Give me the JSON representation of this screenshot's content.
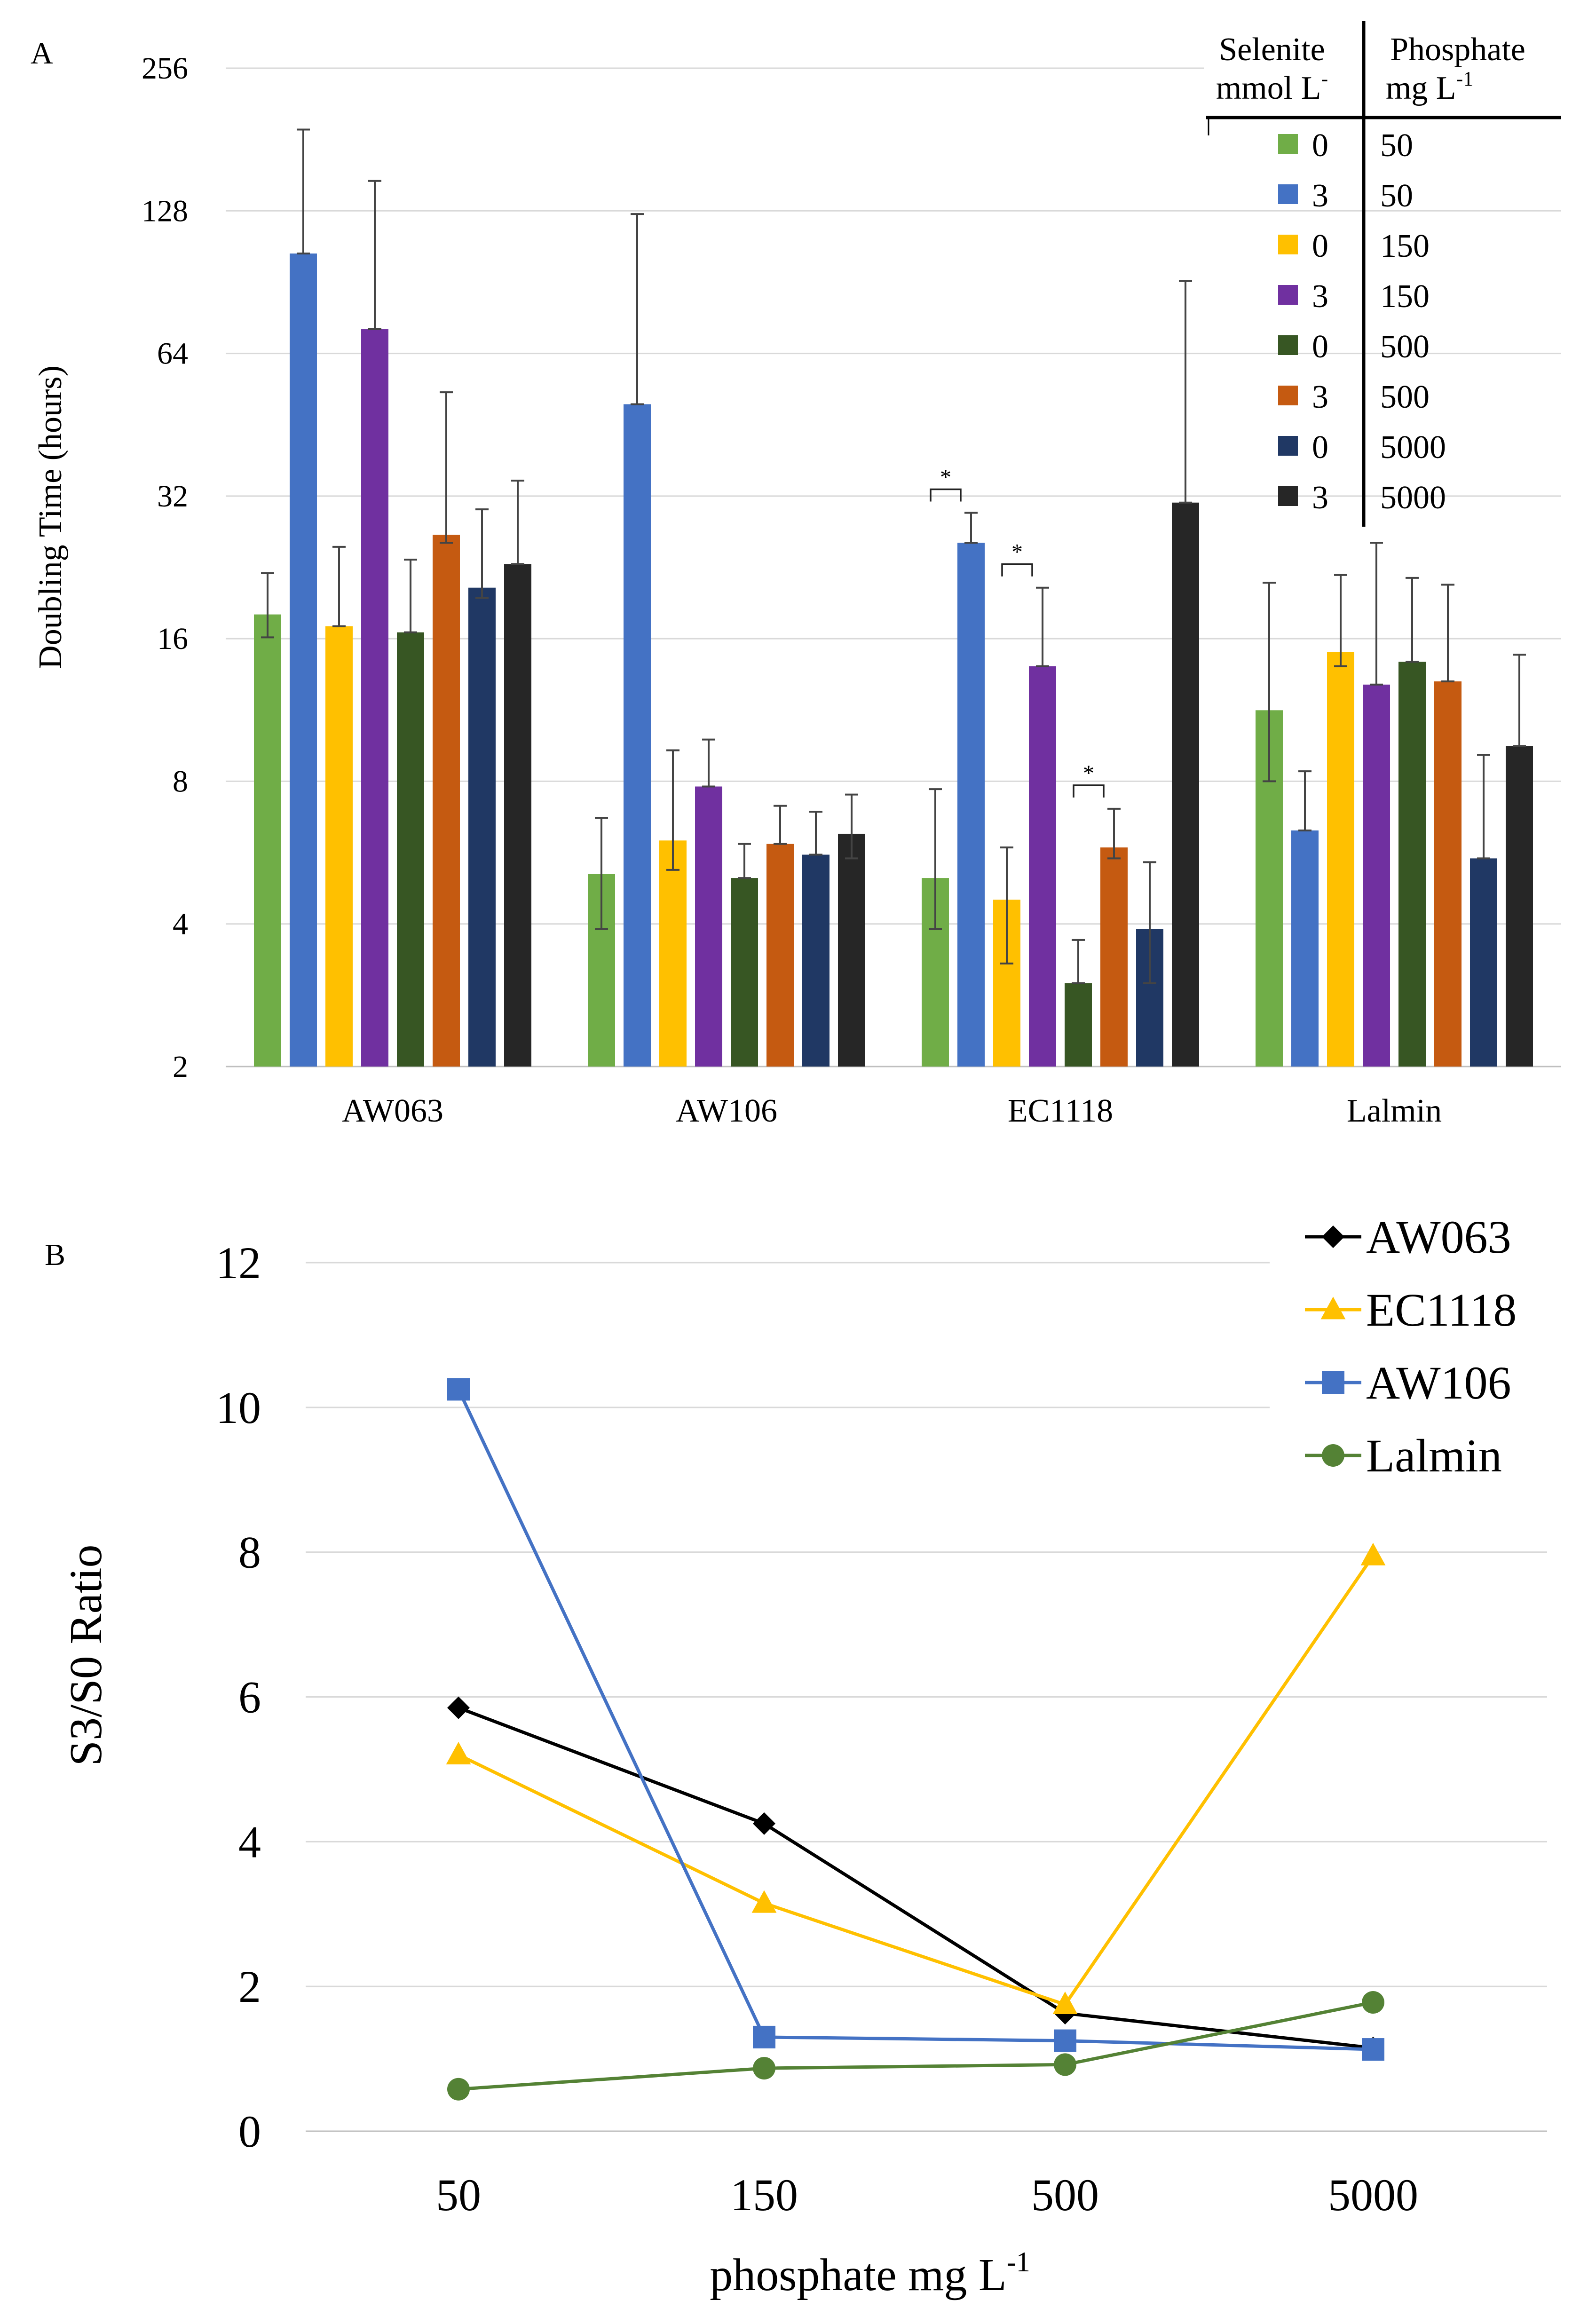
{
  "panel_a_label": "A",
  "panel_b_label": "B",
  "chart_data": [
    {
      "type": "bar",
      "title": "",
      "ylabel": "Doubling Time (hours)",
      "xlabel": "",
      "y_scale": "log2",
      "ylim": [
        2,
        256
      ],
      "y_ticks": [
        2,
        4,
        8,
        16,
        32,
        64,
        128,
        256
      ],
      "grid": true,
      "categories": [
        "AW063",
        "AW106",
        "EC1118",
        "Lalmin"
      ],
      "legend": {
        "position": "top-right",
        "header_selenite": "Selenite",
        "header_selenite_unit": "mmol L",
        "header_selenite_sup": "-",
        "header_phosphate": "Phosphate",
        "header_phosphate_unit": "mg L",
        "header_phosphate_sup": "-1"
      },
      "series": [
        {
          "name": "0 / 50",
          "selenite": "0",
          "phosphate": "50",
          "color": "#70ad47",
          "values": [
            18.0,
            5.1,
            5.0,
            11.3
          ],
          "err_low": [
            16.1,
            3.9,
            3.9,
            8.0
          ],
          "err_high": [
            22.0,
            6.7,
            7.7,
            21.0
          ]
        },
        {
          "name": "3 / 50",
          "selenite": "3",
          "phosphate": "50",
          "color": "#4472c4",
          "values": [
            104,
            50,
            25.5,
            6.3
          ],
          "err_low": [
            104,
            50,
            25.5,
            6.3
          ],
          "err_high": [
            190,
            126,
            29.5,
            8.4
          ]
        },
        {
          "name": "0 / 150",
          "selenite": "0",
          "phosphate": "150",
          "color": "#ffc000",
          "values": [
            17.0,
            6.0,
            4.5,
            15.0
          ],
          "err_low": [
            17.0,
            5.2,
            3.3,
            14.0
          ],
          "err_high": [
            25.0,
            9.3,
            5.8,
            21.8
          ]
        },
        {
          "name": "3 / 150",
          "selenite": "3",
          "phosphate": "150",
          "color": "#7030a0",
          "values": [
            72,
            7.8,
            14.0,
            12.8
          ],
          "err_low": [
            72,
            7.8,
            14.0,
            12.8
          ],
          "err_high": [
            148,
            9.8,
            20.5,
            25.5
          ]
        },
        {
          "name": "0 / 500",
          "selenite": "0",
          "phosphate": "500",
          "color": "#375623",
          "values": [
            16.5,
            5.0,
            3.0,
            14.3
          ],
          "err_low": [
            16.5,
            5.0,
            3.0,
            14.3
          ],
          "err_high": [
            23.5,
            5.9,
            3.7,
            21.5
          ]
        },
        {
          "name": "3 / 500",
          "selenite": "3",
          "phosphate": "500",
          "color": "#c55a11",
          "values": [
            26.5,
            5.9,
            5.8,
            13.0
          ],
          "err_low": [
            25.5,
            5.9,
            5.5,
            13.0
          ],
          "err_high": [
            53,
            7.1,
            7.0,
            20.8
          ]
        },
        {
          "name": "0 / 5000",
          "selenite": "0",
          "phosphate": "5000",
          "color": "#203864",
          "values": [
            20.5,
            5.6,
            3.9,
            5.5
          ],
          "err_low": [
            19.5,
            5.6,
            3.0,
            5.5
          ],
          "err_high": [
            30.0,
            6.9,
            5.4,
            9.1
          ]
        },
        {
          "name": "3 / 5000",
          "selenite": "3",
          "phosphate": "5000",
          "color": "#262626",
          "values": [
            23.0,
            6.2,
            31.0,
            9.5
          ],
          "err_low": [
            23.0,
            5.5,
            31.0,
            9.5
          ],
          "err_high": [
            34.5,
            7.5,
            91,
            14.8
          ]
        }
      ],
      "significance": [
        {
          "label": "*",
          "category": "EC1118",
          "between": [
            "0 / 50",
            "3 / 50"
          ]
        },
        {
          "label": "*",
          "category": "EC1118",
          "between": [
            "0 / 150",
            "3 / 150"
          ]
        },
        {
          "label": "*",
          "category": "EC1118",
          "between": [
            "0 / 500",
            "3 / 500"
          ]
        }
      ]
    },
    {
      "type": "line",
      "title": "",
      "xlabel": "phosphate mg L",
      "xlabel_sup": "-1",
      "ylabel": "S3/S0 Ratio",
      "ylim": [
        0,
        12
      ],
      "y_ticks": [
        0,
        2,
        4,
        6,
        8,
        10,
        12
      ],
      "grid": true,
      "categories": [
        "50",
        "150",
        "500",
        "5000"
      ],
      "legend_position": "top-right",
      "series": [
        {
          "name": "AW063",
          "marker": "diamond",
          "color": "#000000",
          "values": [
            5.85,
            4.25,
            1.63,
            1.15
          ]
        },
        {
          "name": "EC1118",
          "marker": "triangle",
          "color": "#ffc000",
          "values": [
            5.2,
            3.15,
            1.75,
            7.95
          ]
        },
        {
          "name": "AW106",
          "marker": "square",
          "color": "#4472c4",
          "values": [
            10.25,
            1.3,
            1.25,
            1.13
          ]
        },
        {
          "name": "Lalmin",
          "marker": "circle",
          "color": "#548235",
          "values": [
            0.58,
            0.87,
            0.92,
            1.78
          ]
        }
      ]
    }
  ]
}
